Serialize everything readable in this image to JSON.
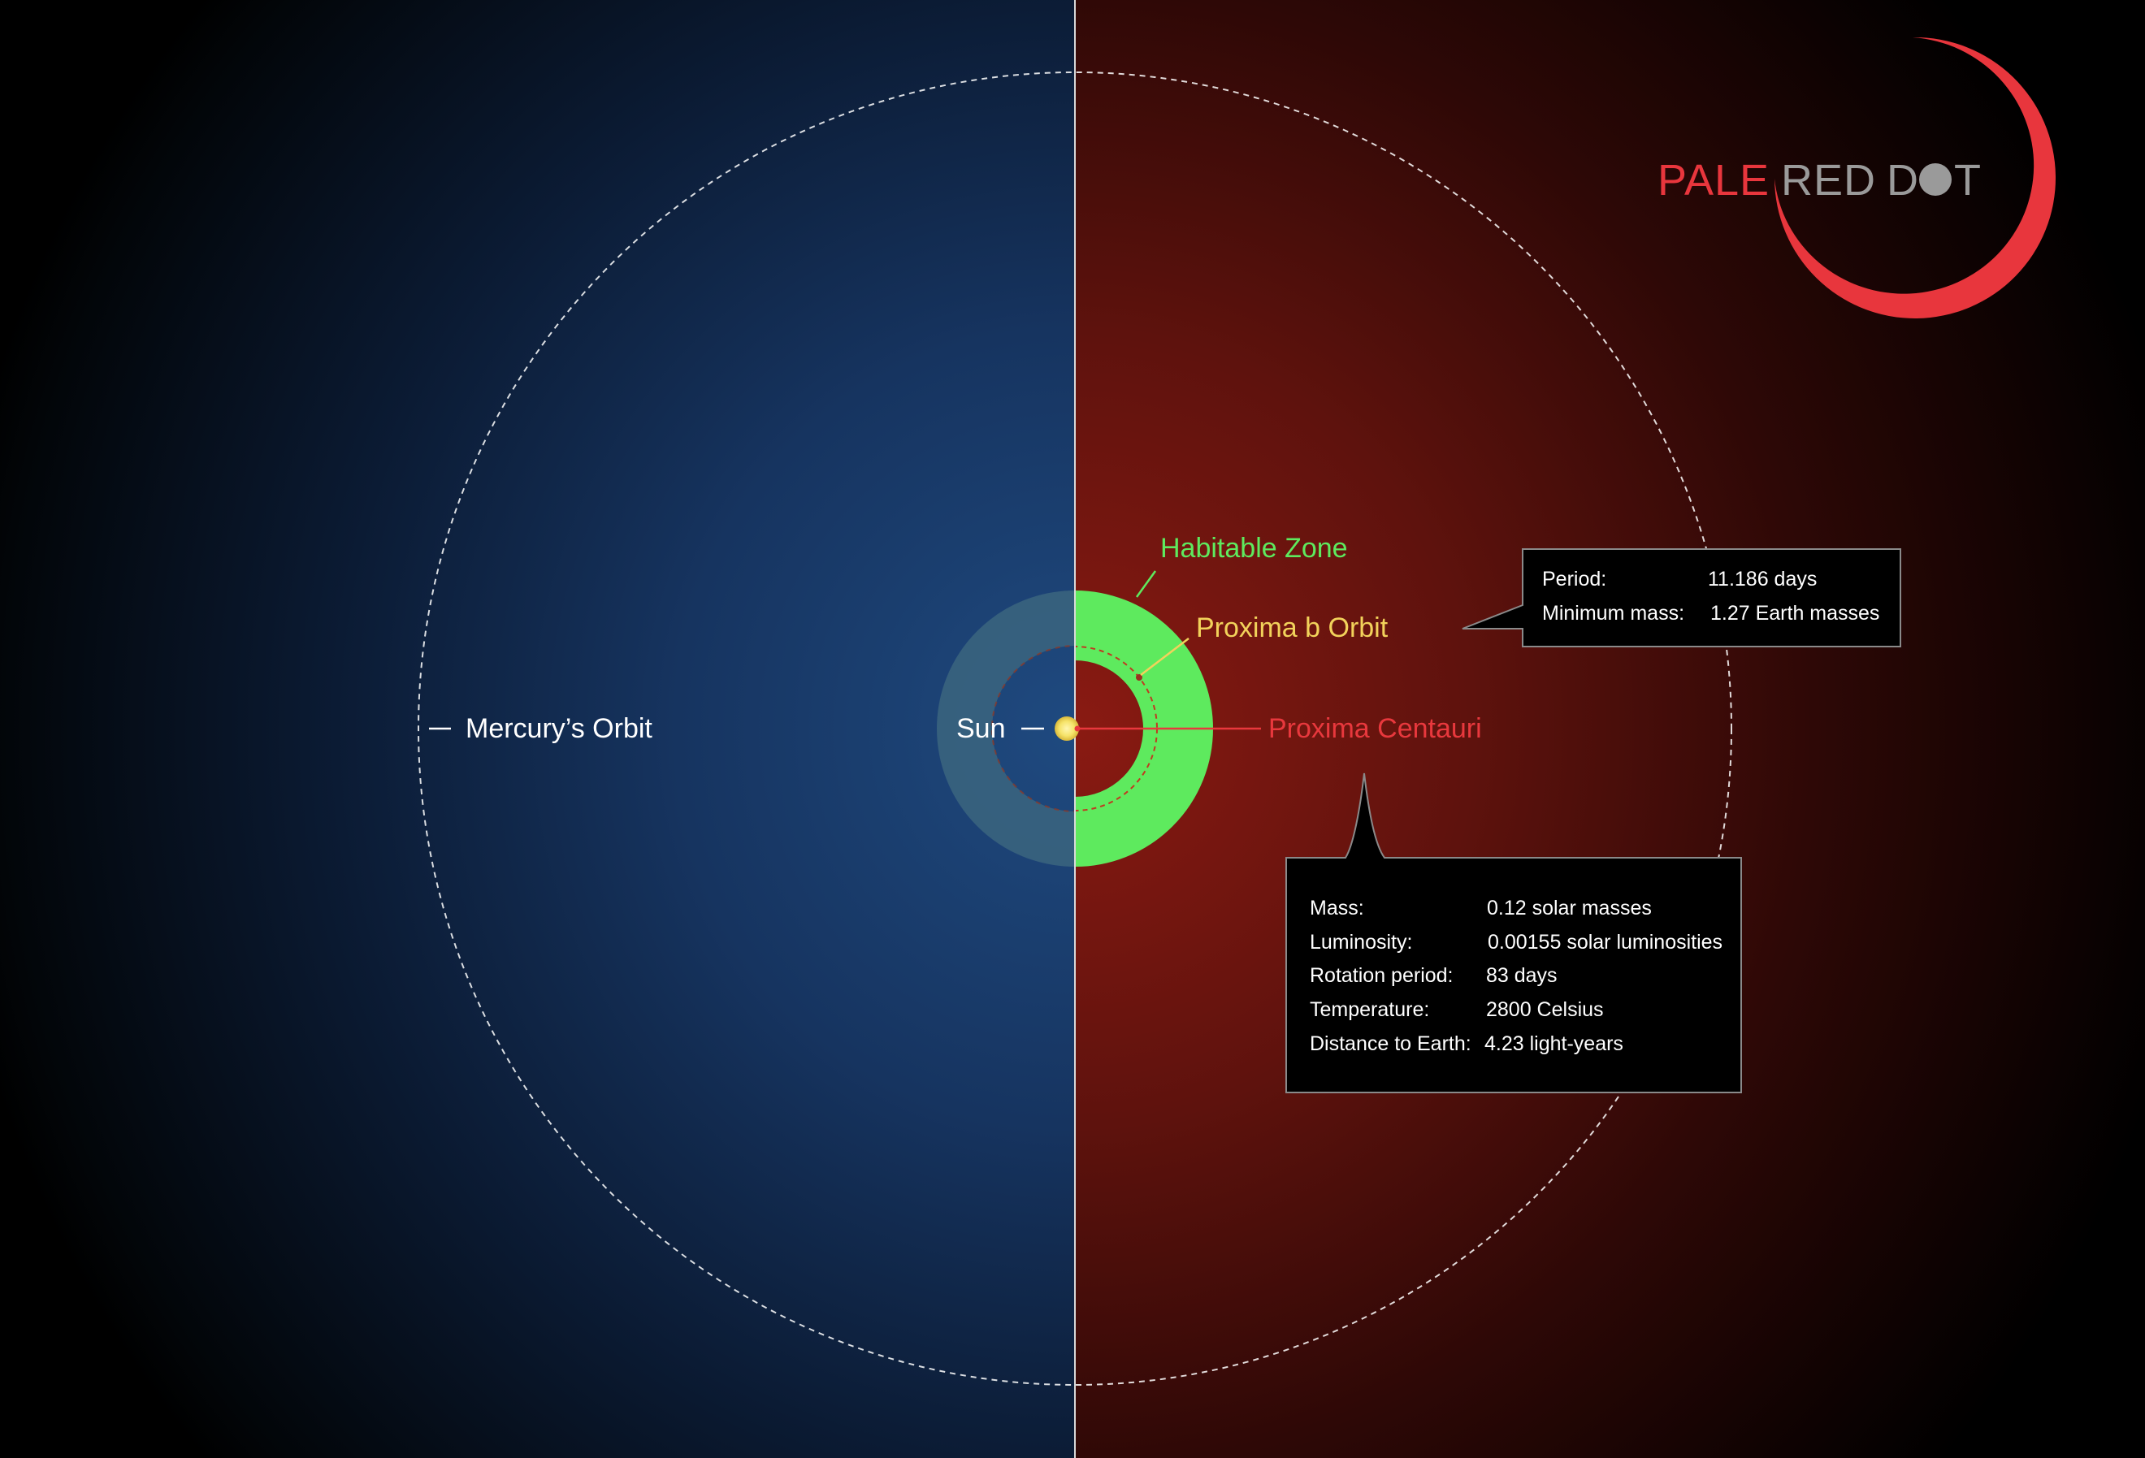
{
  "colors": {
    "left_bg": "#1b3a66",
    "right_bg": "#6b1510",
    "habitable_zone": "#5eea5e",
    "sun": "#f6e46a",
    "proxima_centauri": "#e8383d",
    "proxima_b_orbit": "#f2d25b",
    "mercury_orbit": "#ffffff",
    "logo_red": "#e8363d",
    "logo_gray": "#9a9a9a"
  },
  "labels": {
    "mercury_orbit": "Mercury’s Orbit",
    "sun": "Sun",
    "habitable_zone": "Habitable Zone",
    "proxima_b_orbit": "Proxima b Orbit",
    "proxima_centauri": "Proxima Centauri"
  },
  "planet_box": {
    "rows": [
      {
        "key": "Period:",
        "value": "11.186 days"
      },
      {
        "key": "Minimum mass:",
        "value": "1.27 Earth masses"
      }
    ]
  },
  "star_box": {
    "rows": [
      {
        "key": "Mass:",
        "value": "0.12 solar masses"
      },
      {
        "key": "Luminosity:",
        "value": "0.00155 solar luminosities"
      },
      {
        "key": "Rotation period:",
        "value": "83 days"
      },
      {
        "key": "Temperature:",
        "value": "2800 Celsius"
      },
      {
        "key": "Distance to Earth:",
        "value": "4.23 light-years"
      }
    ]
  },
  "logo": {
    "pale": "PALE",
    "red": "RED",
    "d": "D",
    "t": "T"
  }
}
